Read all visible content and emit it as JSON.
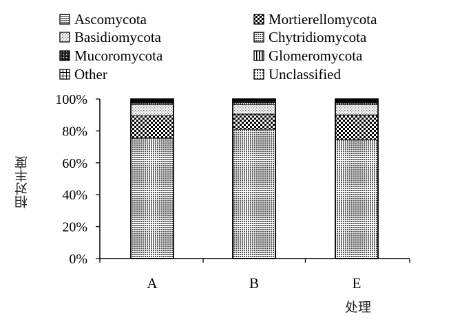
{
  "chart_data": {
    "type": "bar",
    "stacked": true,
    "percent": true,
    "categories": [
      "A",
      "B",
      "E"
    ],
    "ylabel": "相对丰度",
    "xlabel": "处理",
    "ylim": [
      0,
      100
    ],
    "yticks": [
      "0%",
      "20%",
      "40%",
      "60%",
      "80%",
      "100%"
    ],
    "legend_position": "top",
    "series": [
      {
        "name": "Ascomycota",
        "pattern": "dense-dots",
        "values": [
          75.5,
          81,
          74.5
        ]
      },
      {
        "name": "Mortierellomycota",
        "pattern": "checker",
        "values": [
          14,
          9.5,
          15.5
        ]
      },
      {
        "name": "Basidiomycota",
        "pattern": "light-dots",
        "values": [
          7,
          6,
          6.5
        ]
      },
      {
        "name": "Chytridiomycota",
        "pattern": "dense-dots",
        "values": [
          1,
          1.2,
          1
        ]
      },
      {
        "name": "Mucoromycota",
        "pattern": "checker-dark",
        "values": [
          1,
          1,
          1
        ]
      },
      {
        "name": "Glomeromycota",
        "pattern": "vertical-lines",
        "values": [
          0.5,
          0.5,
          0.5
        ]
      },
      {
        "name": "Other",
        "pattern": "grid",
        "values": [
          0.5,
          0.4,
          0.5
        ]
      },
      {
        "name": "Unclassified",
        "pattern": "sparse-dots",
        "values": [
          0.5,
          0.4,
          0.5
        ]
      }
    ]
  }
}
